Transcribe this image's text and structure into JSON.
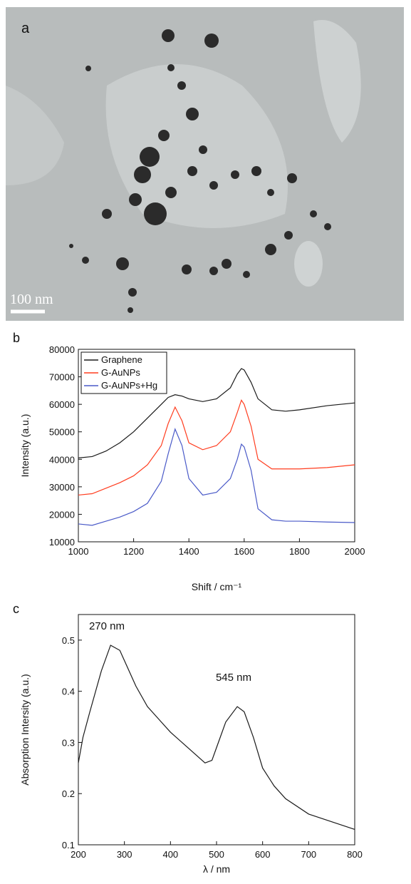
{
  "image_panel": {
    "label": "a",
    "scale_bar": "100 nm"
  },
  "chart_data": [
    {
      "type": "line",
      "label": "b",
      "xlabel": "Shift / cm⁻¹",
      "ylabel": "Intensity (a.u.)",
      "x": [
        1000,
        1050,
        1100,
        1150,
        1200,
        1250,
        1300,
        1325,
        1350,
        1375,
        1400,
        1450,
        1500,
        1550,
        1575,
        1590,
        1600,
        1625,
        1650,
        1700,
        1750,
        1800,
        1900,
        2000
      ],
      "series": [
        {
          "name": "Graphene",
          "color": "#1a1a1a",
          "values": [
            40500,
            41000,
            43000,
            46000,
            50000,
            55000,
            60000,
            62500,
            63500,
            63000,
            62000,
            61000,
            62000,
            66000,
            71000,
            73000,
            72500,
            68000,
            62000,
            58000,
            57500,
            58000,
            59500,
            60500
          ]
        },
        {
          "name": "G-AuNPs",
          "color": "#ff3d1f",
          "values": [
            27000,
            27500,
            29500,
            31500,
            34000,
            38000,
            45000,
            53000,
            59000,
            54000,
            46000,
            43500,
            45000,
            50000,
            57000,
            61500,
            60000,
            52000,
            40000,
            36500,
            36500,
            36500,
            37000,
            38000
          ]
        },
        {
          "name": "G-AuNPs+Hg",
          "color": "#4a5ac8",
          "values": [
            16500,
            16000,
            17500,
            19000,
            21000,
            24000,
            32000,
            42000,
            51000,
            45000,
            33000,
            27000,
            28000,
            33000,
            40000,
            45500,
            44500,
            36000,
            22000,
            18000,
            17500,
            17500,
            17200,
            17000
          ]
        }
      ],
      "xlim": [
        1000,
        2000
      ],
      "xticks": [
        1000,
        1200,
        1400,
        1600,
        1800,
        2000
      ],
      "ylim": [
        10000,
        80000
      ],
      "yticks": [
        10000,
        20000,
        30000,
        40000,
        50000,
        60000,
        70000,
        80000
      ],
      "legend": "upper left"
    },
    {
      "type": "line",
      "label": "c",
      "xlabel": "λ / nm",
      "ylabel": "Absorption Intersity (a.u.)",
      "x": [
        200,
        210,
        225,
        250,
        270,
        290,
        300,
        325,
        350,
        375,
        400,
        425,
        450,
        475,
        490,
        500,
        520,
        545,
        560,
        580,
        600,
        625,
        650,
        700,
        750,
        800
      ],
      "values": [
        0.26,
        0.31,
        0.36,
        0.44,
        0.49,
        0.48,
        0.46,
        0.41,
        0.37,
        0.345,
        0.32,
        0.3,
        0.28,
        0.26,
        0.265,
        0.29,
        0.34,
        0.37,
        0.36,
        0.31,
        0.25,
        0.215,
        0.19,
        0.16,
        0.145,
        0.13
      ],
      "color": "#1a1a1a",
      "annotations": [
        "270 nm",
        "545 nm"
      ],
      "xlim": [
        200,
        800
      ],
      "xticks": [
        200,
        300,
        400,
        500,
        600,
        700,
        800
      ],
      "ylim": [
        0.1,
        0.55
      ],
      "yticks": [
        0.1,
        0.2,
        0.3,
        0.4,
        0.5
      ]
    }
  ]
}
